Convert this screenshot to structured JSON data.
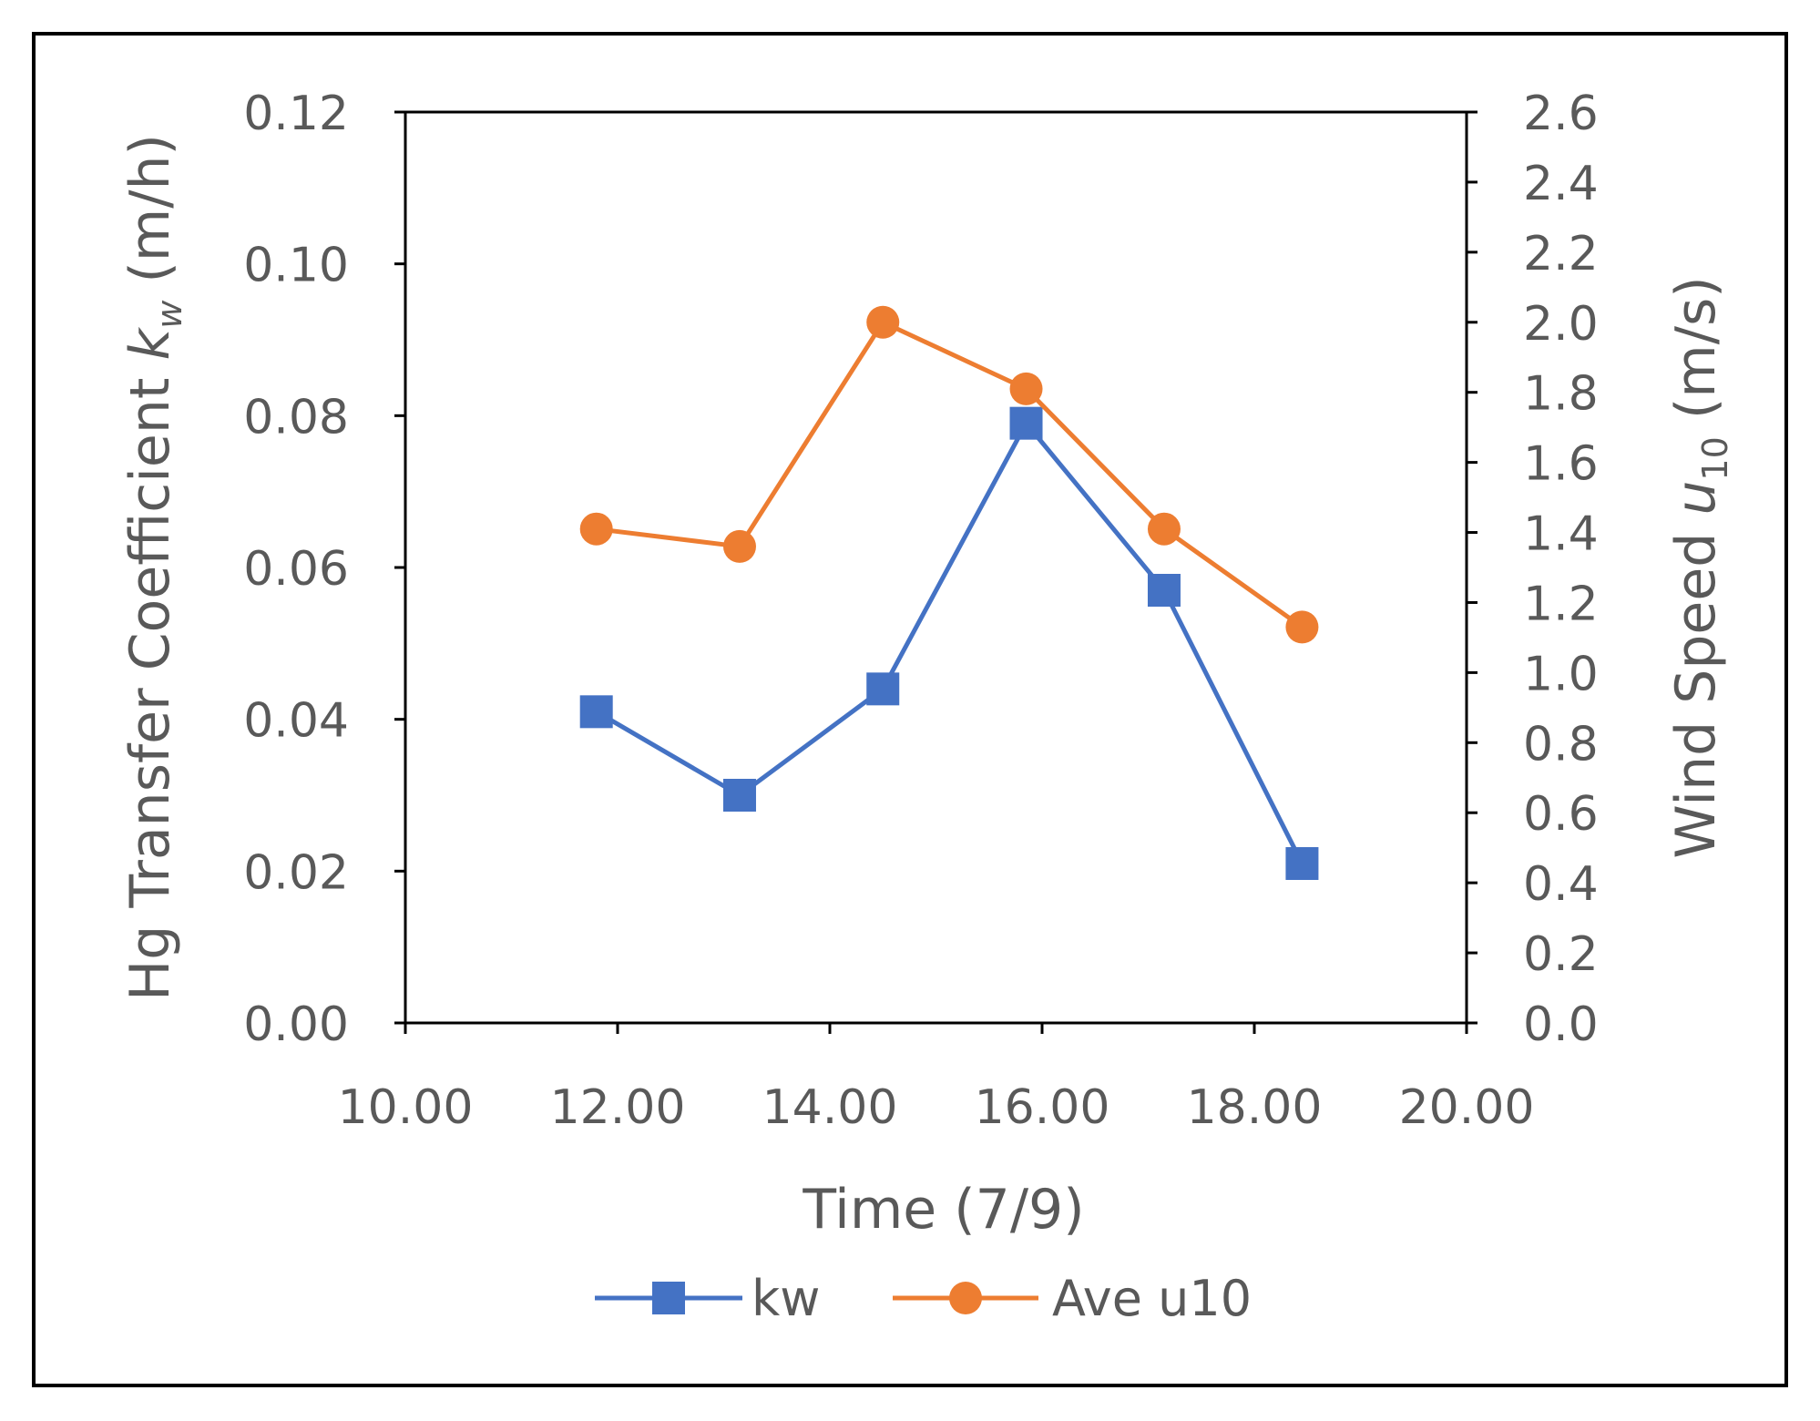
{
  "chart_data": {
    "type": "line",
    "title": "",
    "xlabel": "Time (7/9)",
    "ylabel_left": {
      "prefix": "Hg Transfer Coefficient ",
      "symbol": "k",
      "subscript": "w",
      "suffix": " (m/h)"
    },
    "ylabel_right": {
      "prefix": "Wind Speed ",
      "symbol": "u",
      "subscript": "10",
      "suffix": " (m/s)"
    },
    "xlim": [
      10,
      20
    ],
    "xticks": [
      10,
      12,
      14,
      16,
      18,
      20
    ],
    "xtick_labels": [
      "10.00",
      "12.00",
      "14.00",
      "16.00",
      "18.00",
      "20.00"
    ],
    "ylim_left": [
      0,
      0.12
    ],
    "yticks_left": [
      0,
      0.02,
      0.04,
      0.06,
      0.08,
      0.1,
      0.12
    ],
    "ytick_labels_left": [
      "0.00",
      "0.02",
      "0.04",
      "0.06",
      "0.08",
      "0.10",
      "0.12"
    ],
    "ylim_right": [
      0,
      2.6
    ],
    "yticks_right": [
      0,
      0.2,
      0.4,
      0.6,
      0.8,
      1.0,
      1.2,
      1.4,
      1.6,
      1.8,
      2.0,
      2.2,
      2.4,
      2.6
    ],
    "ytick_labels_right": [
      "0.0",
      "0.2",
      "0.4",
      "0.6",
      "0.8",
      "1.0",
      "1.2",
      "1.4",
      "1.6",
      "1.8",
      "2.0",
      "2.2",
      "2.4",
      "2.6"
    ],
    "grid": false,
    "legend_position": "bottom-center",
    "series": [
      {
        "name": "kw",
        "axis": "left",
        "marker": "square",
        "color": "#4472C4",
        "x": [
          11.8,
          13.15,
          14.5,
          15.85,
          17.15,
          18.45
        ],
        "y": [
          0.041,
          0.03,
          0.044,
          0.079,
          0.057,
          0.021
        ]
      },
      {
        "name": "Ave u10",
        "axis": "right",
        "marker": "circle",
        "color": "#ED7D31",
        "x": [
          11.8,
          13.15,
          14.5,
          15.85,
          17.15,
          18.45
        ],
        "y": [
          1.41,
          1.36,
          2.0,
          1.81,
          1.41,
          1.13
        ]
      }
    ]
  }
}
